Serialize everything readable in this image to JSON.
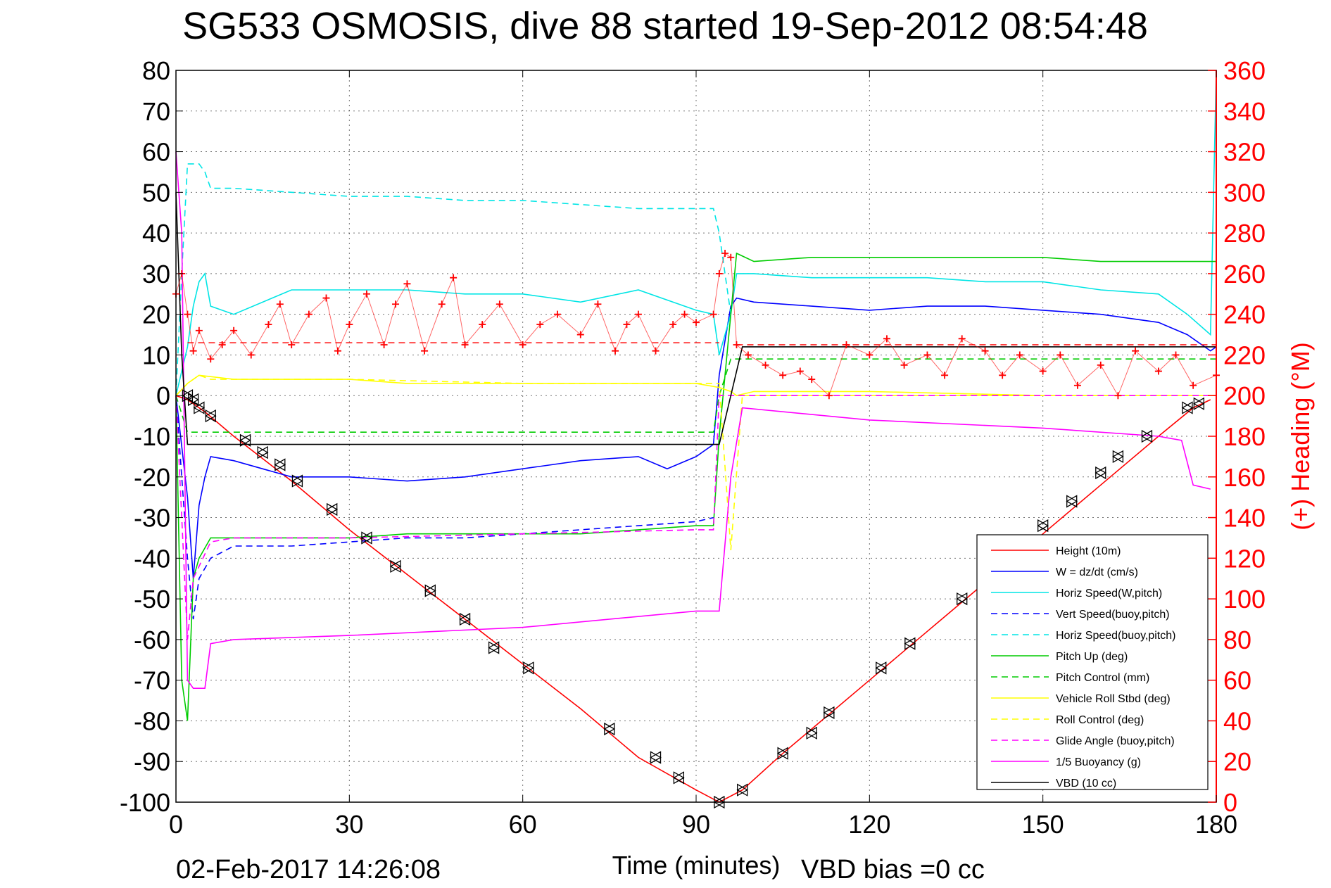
{
  "chart_data": {
    "type": "line",
    "title": "SG533 OSMOSIS, dive 88 started 19-Sep-2012 08:54:48",
    "xlabel": "Time (minutes)",
    "ylabel": "",
    "y2label": "(+) Heading (°M)",
    "xlim": [
      0,
      180
    ],
    "ylim": [
      -100,
      80
    ],
    "y2lim": [
      0,
      360
    ],
    "xticks": [
      0,
      30,
      60,
      90,
      120,
      150,
      180
    ],
    "yticks": [
      80,
      70,
      60,
      50,
      40,
      30,
      20,
      10,
      0,
      -10,
      -20,
      -30,
      -40,
      -50,
      -60,
      -70,
      -80,
      -90,
      -100
    ],
    "y2ticks": [
      360,
      340,
      320,
      300,
      280,
      260,
      240,
      220,
      200,
      180,
      160,
      140,
      120,
      100,
      80,
      60,
      40,
      20,
      0
    ],
    "grid": true,
    "legend_position": "lower-right",
    "series": [
      {
        "name": "Height (10m)",
        "color": "#ff0000",
        "style": "solid",
        "x": [
          0,
          2,
          5,
          10,
          20,
          30,
          40,
          50,
          60,
          70,
          80,
          90,
          94,
          98,
          105,
          110,
          120,
          130,
          140,
          150,
          160,
          170,
          176,
          179
        ],
        "y": [
          0,
          -1,
          -4,
          -10,
          -21,
          -33,
          -44,
          -55,
          -66,
          -77,
          -89,
          -97,
          -100,
          -97,
          -88,
          -82,
          -70,
          -58,
          -46,
          -34,
          -22,
          -10,
          -3,
          -1
        ]
      },
      {
        "name": "W = dz/dt (cm/s)",
        "color": "#0000ff",
        "style": "solid",
        "x": [
          0,
          2,
          3,
          4,
          5,
          6,
          10,
          20,
          30,
          40,
          50,
          60,
          70,
          80,
          85,
          90,
          93,
          94,
          96,
          97,
          100,
          110,
          120,
          130,
          140,
          150,
          160,
          170,
          175,
          179,
          180
        ],
        "y": [
          0,
          -25,
          -45,
          -27,
          -20,
          -15,
          -16,
          -20,
          -20,
          -21,
          -20,
          -18,
          -16,
          -15,
          -18,
          -15,
          -12,
          5,
          22,
          24,
          23,
          22,
          21,
          22,
          22,
          21,
          20,
          18,
          15,
          11,
          12
        ]
      },
      {
        "name": "Horiz Speed(W,pitch)",
        "color": "#00e5e5",
        "style": "solid",
        "x": [
          0,
          2,
          3,
          4,
          5,
          6,
          10,
          20,
          30,
          40,
          50,
          60,
          70,
          80,
          90,
          93,
          94,
          96,
          97,
          100,
          110,
          120,
          130,
          140,
          150,
          160,
          170,
          175,
          179,
          180
        ],
        "y": [
          0,
          12,
          22,
          28,
          30,
          22,
          20,
          26,
          26,
          26,
          25,
          25,
          23,
          26,
          21,
          20,
          10,
          20,
          30,
          30,
          29,
          29,
          29,
          28,
          28,
          26,
          25,
          20,
          15,
          80
        ]
      },
      {
        "name": "Vert Speed(buoy,pitch)",
        "color": "#0000ff",
        "style": "dashed",
        "x": [
          0,
          2,
          3,
          4,
          6,
          10,
          20,
          30,
          40,
          50,
          60,
          70,
          80,
          90,
          93
        ],
        "y": [
          0,
          -40,
          -55,
          -45,
          -40,
          -37,
          -37,
          -36,
          -35,
          -35,
          -34,
          -33,
          -32,
          -31,
          -30
        ]
      },
      {
        "name": "Horiz Speed(buoy,pitch)",
        "color": "#00e5e5",
        "style": "dashed",
        "x": [
          0,
          1,
          2,
          3,
          4,
          5,
          6,
          10,
          20,
          30,
          40,
          50,
          60,
          70,
          80,
          90,
          93,
          94,
          96
        ],
        "y": [
          0,
          30,
          57,
          57,
          57,
          55,
          51,
          51,
          50,
          49,
          49,
          48,
          48,
          47,
          46,
          46,
          46,
          40,
          20
        ]
      },
      {
        "name": "Pitch Up (deg)",
        "color": "#00cc00",
        "style": "solid",
        "x": [
          0,
          1,
          2,
          3,
          4,
          6,
          10,
          20,
          30,
          40,
          50,
          60,
          70,
          80,
          90,
          93,
          94,
          96,
          97,
          100,
          110,
          120,
          130,
          140,
          150,
          160,
          170,
          175,
          178,
          180
        ],
        "y": [
          0,
          -70,
          -80,
          -45,
          -40,
          -35,
          -35,
          -35,
          -35,
          -34,
          -34,
          -34,
          -34,
          -33,
          -32,
          -32,
          -10,
          20,
          35,
          33,
          34,
          34,
          34,
          34,
          34,
          33,
          33,
          33,
          33,
          33
        ]
      },
      {
        "name": "Pitch Control (mm)",
        "color": "#00cc00",
        "style": "dashed",
        "x": [
          0,
          2,
          4,
          10,
          30,
          60,
          90,
          93,
          94,
          96,
          97,
          120,
          150,
          180
        ],
        "y": [
          0,
          -9,
          -9,
          -9,
          -9,
          -9,
          -9,
          -9,
          0,
          9,
          9,
          9,
          9,
          9
        ]
      },
      {
        "name": "Vehicle Roll Stbd (deg)",
        "color": "#ffff00",
        "style": "solid",
        "x": [
          0,
          2,
          4,
          10,
          20,
          30,
          40,
          50,
          60,
          70,
          80,
          90,
          94,
          96,
          97,
          100,
          120,
          150,
          175,
          180
        ],
        "y": [
          0,
          3,
          5,
          4,
          4,
          4,
          3,
          3,
          3,
          3,
          3,
          3,
          2,
          1,
          0,
          1,
          1,
          0,
          0,
          0
        ]
      },
      {
        "name": "Roll Control (deg)",
        "color": "#ffff00",
        "style": "dashed",
        "x": [
          0,
          2,
          4,
          6,
          10,
          30,
          60,
          90,
          94,
          96,
          98,
          120,
          150,
          180
        ],
        "y": [
          0,
          3,
          5,
          4,
          4,
          4,
          3,
          3,
          3,
          -38,
          0,
          0,
          0,
          0
        ]
      },
      {
        "name": "Glide Angle (buoy,pitch)",
        "color": "#ff00ff",
        "style": "dashed",
        "x": [
          0,
          2,
          3,
          6,
          10,
          30,
          60,
          90,
          93,
          94,
          96,
          97,
          120,
          150,
          180
        ],
        "y": [
          0,
          -60,
          -45,
          -36,
          -35,
          -35,
          -34,
          -33,
          -33,
          0,
          0,
          0,
          0,
          0,
          0
        ]
      },
      {
        "name": "1/5 Buoyancy (g)",
        "color": "#ff00ff",
        "style": "solid",
        "x": [
          0,
          1,
          2,
          3,
          5,
          6,
          10,
          30,
          60,
          90,
          94,
          96,
          98,
          120,
          150,
          170,
          174,
          176,
          179
        ],
        "y": [
          60,
          40,
          -70,
          -72,
          -72,
          -61,
          -60,
          -59,
          -57,
          -53,
          -53,
          -20,
          -3,
          -6,
          -8,
          -10,
          -11,
          -22,
          -23
        ]
      },
      {
        "name": "VBD (10 cc)",
        "color": "#000000",
        "style": "solid",
        "x": [
          0,
          1,
          2,
          3,
          30,
          60,
          90,
          94,
          96,
          98,
          120,
          150,
          180
        ],
        "y": [
          50,
          10,
          -12,
          -12,
          -12,
          -12,
          -12,
          -12,
          0,
          12,
          12,
          12,
          12
        ]
      }
    ],
    "heading_markers": {
      "color": "#ff0000",
      "axis": "right",
      "symbol": "+",
      "mean_line": [
        {
          "x": [
            2,
            94
          ],
          "y": 226
        },
        {
          "x": [
            97,
            180
          ],
          "y": 225
        }
      ],
      "x": [
        0,
        1,
        2,
        3,
        4,
        6,
        8,
        10,
        13,
        16,
        18,
        20,
        23,
        26,
        28,
        30,
        33,
        36,
        38,
        40,
        43,
        46,
        48,
        50,
        53,
        56,
        60,
        63,
        66,
        70,
        73,
        76,
        78,
        80,
        83,
        86,
        88,
        90,
        93,
        94,
        95,
        96,
        97,
        99,
        102,
        105,
        108,
        110,
        113,
        116,
        120,
        123,
        126,
        130,
        133,
        136,
        140,
        143,
        146,
        150,
        153,
        156,
        160,
        163,
        166,
        170,
        173,
        176,
        180
      ],
      "y": [
        250,
        260,
        240,
        222,
        232,
        218,
        225,
        232,
        220,
        235,
        245,
        225,
        240,
        248,
        222,
        235,
        250,
        225,
        245,
        255,
        222,
        245,
        258,
        225,
        235,
        245,
        225,
        235,
        240,
        230,
        245,
        222,
        235,
        240,
        222,
        235,
        240,
        236,
        240,
        260,
        270,
        268,
        225,
        220,
        215,
        210,
        212,
        208,
        200,
        225,
        220,
        228,
        215,
        220,
        210,
        228,
        222,
        210,
        220,
        212,
        220,
        205,
        215,
        200,
        222,
        212,
        220,
        205,
        210
      ]
    },
    "dive_markers": {
      "color": "#000000",
      "symbol": "triangle",
      "x": [
        2,
        3,
        4,
        6,
        12,
        15,
        18,
        21,
        27,
        33,
        38,
        44,
        50,
        55,
        61,
        75,
        83,
        87,
        94,
        98,
        105,
        110,
        113,
        122,
        127,
        136,
        150,
        155,
        160,
        163,
        168,
        175,
        177
      ],
      "y": [
        0,
        -1,
        -3,
        -5,
        -11,
        -14,
        -17,
        -21,
        -28,
        -35,
        -42,
        -48,
        -55,
        -62,
        -67,
        -82,
        -89,
        -94,
        -100,
        -97,
        -88,
        -83,
        -78,
        -67,
        -61,
        -50,
        -32,
        -26,
        -19,
        -15,
        -10,
        -3,
        -2
      ]
    },
    "footer_timestamp": "02-Feb-2017 14:26:08",
    "footer_note": "VBD bias =0 cc"
  }
}
